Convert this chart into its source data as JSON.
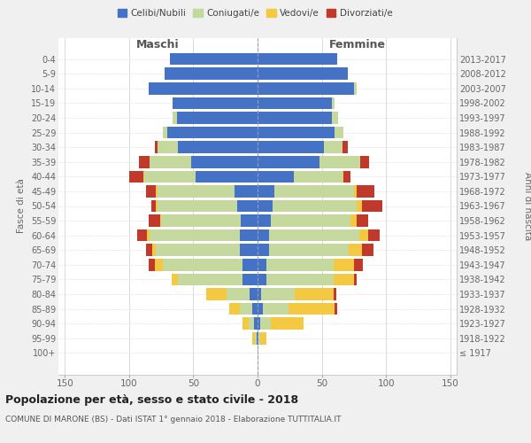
{
  "age_groups": [
    "100+",
    "95-99",
    "90-94",
    "85-89",
    "80-84",
    "75-79",
    "70-74",
    "65-69",
    "60-64",
    "55-59",
    "50-54",
    "45-49",
    "40-44",
    "35-39",
    "30-34",
    "25-29",
    "20-24",
    "15-19",
    "10-14",
    "5-9",
    "0-4"
  ],
  "birth_years": [
    "≤ 1917",
    "1918-1922",
    "1923-1927",
    "1928-1932",
    "1933-1937",
    "1938-1942",
    "1943-1947",
    "1948-1952",
    "1953-1957",
    "1958-1962",
    "1963-1967",
    "1968-1972",
    "1973-1977",
    "1978-1982",
    "1983-1987",
    "1988-1992",
    "1993-1997",
    "1998-2002",
    "2003-2007",
    "2008-2012",
    "2013-2017"
  ],
  "colors": {
    "celibe": "#4472C4",
    "coniugato": "#C5D89D",
    "vedovo": "#F5C842",
    "divorziato": "#C0392B"
  },
  "maschi": {
    "celibe": [
      0,
      1,
      3,
      4,
      6,
      12,
      12,
      14,
      14,
      13,
      16,
      18,
      48,
      52,
      62,
      70,
      63,
      66,
      85,
      72,
      68
    ],
    "coniugato": [
      0,
      1,
      4,
      10,
      18,
      50,
      62,
      65,
      70,
      62,
      62,
      60,
      40,
      32,
      16,
      4,
      3,
      0,
      0,
      0,
      0
    ],
    "vedovo": [
      0,
      2,
      5,
      8,
      16,
      5,
      6,
      3,
      2,
      1,
      1,
      1,
      1,
      0,
      0,
      0,
      0,
      0,
      0,
      0,
      0
    ],
    "divorziato": [
      0,
      0,
      0,
      0,
      0,
      0,
      5,
      5,
      8,
      9,
      4,
      8,
      11,
      8,
      2,
      0,
      0,
      0,
      0,
      0,
      0
    ]
  },
  "femmine": {
    "nubile": [
      0,
      1,
      2,
      4,
      3,
      7,
      7,
      9,
      9,
      10,
      12,
      13,
      28,
      48,
      52,
      60,
      58,
      58,
      75,
      70,
      62
    ],
    "coniugata": [
      0,
      1,
      8,
      20,
      26,
      52,
      52,
      62,
      70,
      62,
      65,
      62,
      38,
      32,
      14,
      7,
      5,
      2,
      2,
      0,
      0
    ],
    "vedova": [
      1,
      5,
      26,
      36,
      30,
      16,
      16,
      10,
      7,
      5,
      4,
      2,
      1,
      0,
      0,
      0,
      0,
      0,
      0,
      0,
      0
    ],
    "divorziata": [
      0,
      0,
      0,
      2,
      2,
      2,
      7,
      9,
      9,
      9,
      16,
      14,
      5,
      7,
      4,
      0,
      0,
      0,
      0,
      0,
      0
    ]
  },
  "xlim": 155,
  "title": "Popolazione per età, sesso e stato civile - 2018",
  "subtitle": "COMUNE DI MARONE (BS) - Dati ISTAT 1° gennaio 2018 - Elaborazione TUTTITALIA.IT",
  "ylabel_left": "Fasce di età",
  "ylabel_right": "Anni di nascita",
  "xlabel_maschi": "Maschi",
  "xlabel_femmine": "Femmine",
  "bg_color": "#f0f0f0",
  "plot_bg": "#ffffff"
}
